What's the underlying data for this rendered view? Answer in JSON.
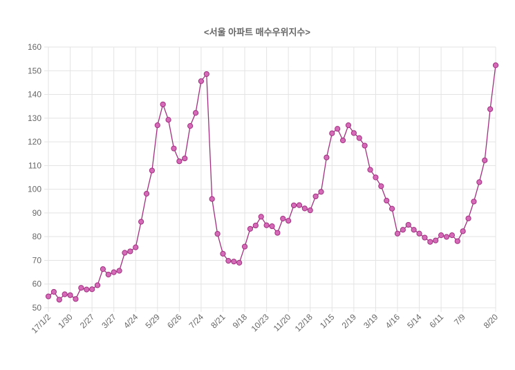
{
  "chart_data": {
    "type": "line",
    "title": "<서울 아파트 매수우위지수>",
    "xlabel": "",
    "ylabel": "",
    "ylim": [
      50,
      160
    ],
    "yticks": [
      50,
      60,
      70,
      80,
      90,
      100,
      110,
      120,
      130,
      140,
      150,
      160
    ],
    "grid": true,
    "legend": "none",
    "series_color": "#a0307f",
    "marker_fill": "#d46ab8",
    "x_tick_labels": [
      {
        "index": 0,
        "label": "17/1/2"
      },
      {
        "index": 4,
        "label": "1/30"
      },
      {
        "index": 8,
        "label": "2/27"
      },
      {
        "index": 12,
        "label": "3/27"
      },
      {
        "index": 16,
        "label": "4/24"
      },
      {
        "index": 20,
        "label": "5/29"
      },
      {
        "index": 24,
        "label": "6/26"
      },
      {
        "index": 28,
        "label": "7/24"
      },
      {
        "index": 32,
        "label": "8/21"
      },
      {
        "index": 36,
        "label": "9/18"
      },
      {
        "index": 40,
        "label": "10/23"
      },
      {
        "index": 44,
        "label": "11/20"
      },
      {
        "index": 48,
        "label": "12/18"
      },
      {
        "index": 52,
        "label": "1/15"
      },
      {
        "index": 56,
        "label": "2/19"
      },
      {
        "index": 60,
        "label": "3/19"
      },
      {
        "index": 64,
        "label": "4/16"
      },
      {
        "index": 68,
        "label": "5/14"
      },
      {
        "index": 72,
        "label": "6/11"
      },
      {
        "index": 76,
        "label": "7/9"
      },
      {
        "index": 82,
        "label": "8/20"
      }
    ],
    "series": [
      {
        "name": "매수우위지수",
        "values": [
          54.8,
          56.7,
          53.4,
          55.7,
          55.3,
          53.7,
          58.4,
          57.7,
          57.8,
          59.5,
          66.3,
          64.0,
          65.0,
          65.6,
          73.2,
          73.8,
          75.5,
          86.3,
          98.1,
          107.9,
          127.0,
          135.8,
          129.3,
          117.2,
          111.8,
          113.0,
          126.7,
          132.2,
          145.6,
          148.6,
          95.9,
          81.2,
          72.8,
          69.8,
          69.5,
          69.0,
          75.8,
          83.3,
          84.7,
          88.4,
          84.8,
          84.4,
          81.6,
          87.6,
          86.7,
          93.2,
          93.3,
          91.9,
          91.1,
          97.0,
          98.9,
          113.4,
          123.6,
          125.5,
          120.6,
          127.0,
          123.7,
          121.6,
          118.4,
          108.2,
          105.0,
          101.3,
          95.2,
          91.8,
          81.3,
          82.9,
          85.0,
          82.9,
          81.3,
          79.6,
          77.8,
          78.4,
          80.6,
          79.9,
          80.6,
          78.1,
          82.3,
          87.7,
          94.8,
          103.0,
          112.2,
          133.8,
          152.3
        ]
      }
    ]
  }
}
